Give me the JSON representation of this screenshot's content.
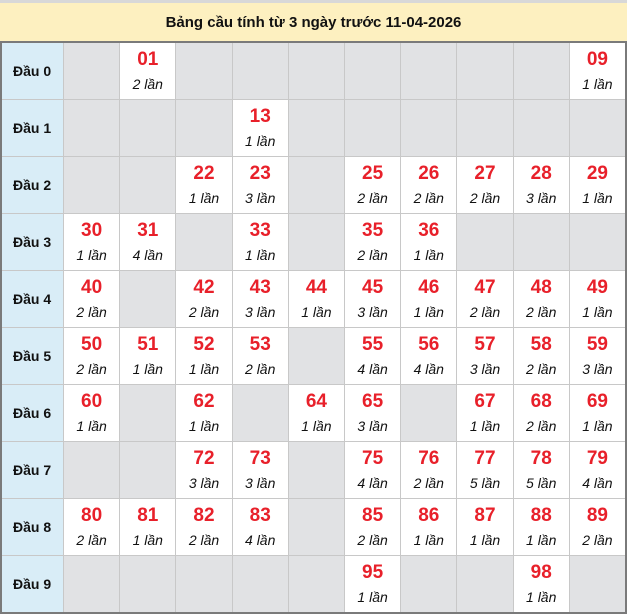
{
  "title": "Bảng cầu tính từ 3 ngày trước 11-04-2026",
  "colors": {
    "number": "#e8202a",
    "header_bg": "#fdf0c0",
    "label_bg": "#d9edf7",
    "empty_bg": "#e1e2e4"
  },
  "rows": [
    {
      "label": "Đầu 0",
      "cells": [
        null,
        {
          "num": "01",
          "count": "2 lần"
        },
        null,
        null,
        null,
        null,
        null,
        null,
        null,
        {
          "num": "09",
          "count": "1 lần"
        }
      ]
    },
    {
      "label": "Đầu 1",
      "cells": [
        null,
        null,
        null,
        {
          "num": "13",
          "count": "1 lần"
        },
        null,
        null,
        null,
        null,
        null,
        null
      ]
    },
    {
      "label": "Đầu 2",
      "cells": [
        null,
        null,
        {
          "num": "22",
          "count": "1 lần"
        },
        {
          "num": "23",
          "count": "3 lần"
        },
        null,
        {
          "num": "25",
          "count": "2 lần"
        },
        {
          "num": "26",
          "count": "2 lần"
        },
        {
          "num": "27",
          "count": "2 lần"
        },
        {
          "num": "28",
          "count": "3 lần"
        },
        {
          "num": "29",
          "count": "1 lần"
        }
      ]
    },
    {
      "label": "Đầu 3",
      "cells": [
        {
          "num": "30",
          "count": "1 lần"
        },
        {
          "num": "31",
          "count": "4 lần"
        },
        null,
        {
          "num": "33",
          "count": "1 lần"
        },
        null,
        {
          "num": "35",
          "count": "2 lần"
        },
        {
          "num": "36",
          "count": "1 lần"
        },
        null,
        null,
        null
      ]
    },
    {
      "label": "Đầu 4",
      "cells": [
        {
          "num": "40",
          "count": "2 lần"
        },
        null,
        {
          "num": "42",
          "count": "2 lần"
        },
        {
          "num": "43",
          "count": "3 lần"
        },
        {
          "num": "44",
          "count": "1 lần"
        },
        {
          "num": "45",
          "count": "3 lần"
        },
        {
          "num": "46",
          "count": "1 lần"
        },
        {
          "num": "47",
          "count": "2 lần"
        },
        {
          "num": "48",
          "count": "2 lần"
        },
        {
          "num": "49",
          "count": "1 lần"
        }
      ]
    },
    {
      "label": "Đầu 5",
      "cells": [
        {
          "num": "50",
          "count": "2 lần"
        },
        {
          "num": "51",
          "count": "1 lần"
        },
        {
          "num": "52",
          "count": "1 lần"
        },
        {
          "num": "53",
          "count": "2 lần"
        },
        null,
        {
          "num": "55",
          "count": "4 lần"
        },
        {
          "num": "56",
          "count": "4 lần"
        },
        {
          "num": "57",
          "count": "3 lần"
        },
        {
          "num": "58",
          "count": "2 lần"
        },
        {
          "num": "59",
          "count": "3 lần"
        }
      ]
    },
    {
      "label": "Đầu 6",
      "cells": [
        {
          "num": "60",
          "count": "1 lần"
        },
        null,
        {
          "num": "62",
          "count": "1 lần"
        },
        null,
        {
          "num": "64",
          "count": "1 lần"
        },
        {
          "num": "65",
          "count": "3 lần"
        },
        null,
        {
          "num": "67",
          "count": "1 lần"
        },
        {
          "num": "68",
          "count": "2 lần"
        },
        {
          "num": "69",
          "count": "1 lần"
        }
      ]
    },
    {
      "label": "Đầu 7",
      "cells": [
        null,
        null,
        {
          "num": "72",
          "count": "3 lần"
        },
        {
          "num": "73",
          "count": "3 lần"
        },
        null,
        {
          "num": "75",
          "count": "4 lần"
        },
        {
          "num": "76",
          "count": "2 lần"
        },
        {
          "num": "77",
          "count": "5 lần"
        },
        {
          "num": "78",
          "count": "5 lần"
        },
        {
          "num": "79",
          "count": "4 lần"
        }
      ]
    },
    {
      "label": "Đầu 8",
      "cells": [
        {
          "num": "80",
          "count": "2 lần"
        },
        {
          "num": "81",
          "count": "1 lần"
        },
        {
          "num": "82",
          "count": "2 lần"
        },
        {
          "num": "83",
          "count": "4 lần"
        },
        null,
        {
          "num": "85",
          "count": "2 lần"
        },
        {
          "num": "86",
          "count": "1 lần"
        },
        {
          "num": "87",
          "count": "1 lần"
        },
        {
          "num": "88",
          "count": "1 lần"
        },
        {
          "num": "89",
          "count": "2 lần"
        }
      ]
    },
    {
      "label": "Đầu 9",
      "cells": [
        null,
        null,
        null,
        null,
        null,
        {
          "num": "95",
          "count": "1 lần"
        },
        null,
        null,
        {
          "num": "98",
          "count": "1 lần"
        },
        null
      ]
    }
  ]
}
